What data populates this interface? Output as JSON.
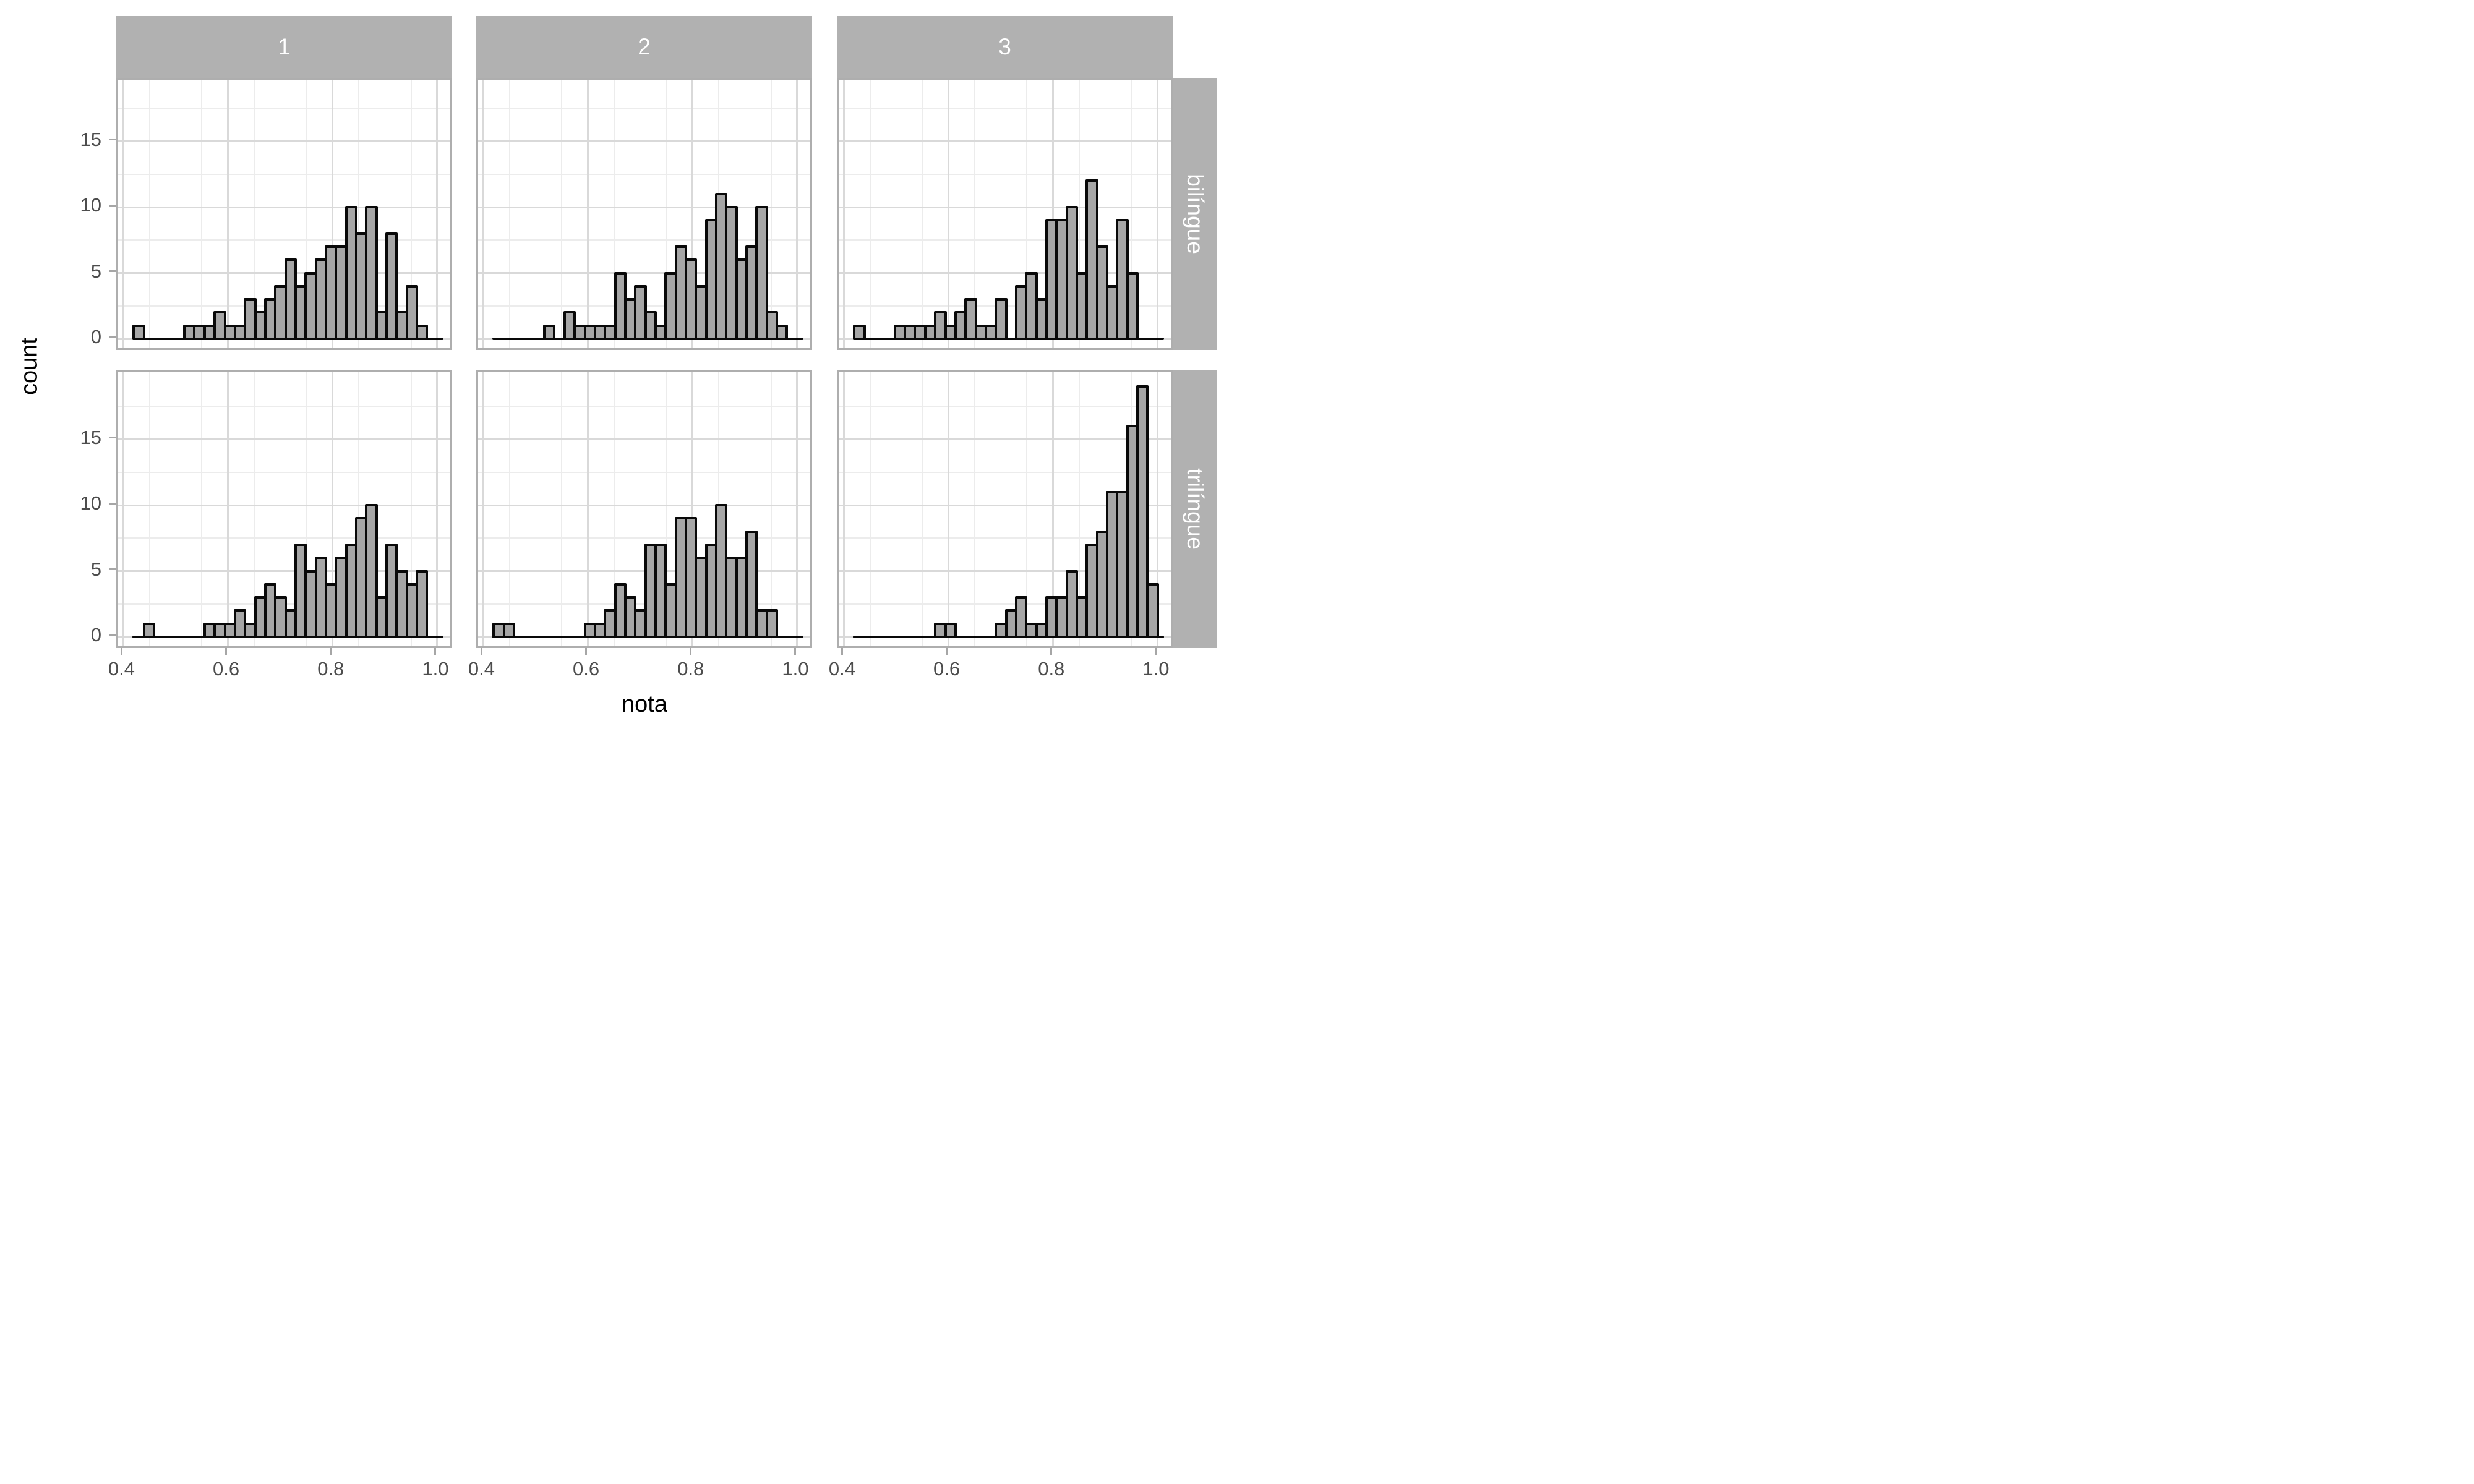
{
  "chart_data": {
    "type": "bar",
    "subtype": "faceted-histogram",
    "title": "",
    "xlabel": "nota",
    "ylabel": "count",
    "legend": "none",
    "grid": "on",
    "x_ticks": [
      0.4,
      0.6,
      0.8,
      1.0
    ],
    "x_tick_labels": [
      "0.4",
      "0.6",
      "0.8",
      "1.0"
    ],
    "y_ticks": [
      0,
      5,
      10,
      15
    ],
    "y_tick_labels": [
      "0",
      "5",
      "10",
      "15"
    ],
    "x_minor_ticks": [
      0.45,
      0.55,
      0.65,
      0.75,
      0.85,
      0.95
    ],
    "y_minor_ticks": [
      2.5,
      7.5,
      12.5,
      17.5
    ],
    "x_range": [
      0.39,
      1.032
    ],
    "y_range": [
      -1,
      19.8
    ],
    "bin_start": 0.42,
    "bin_width": 0.01933,
    "n_bins": 30,
    "facet_col_labels": [
      "1",
      "2",
      "3"
    ],
    "facet_row_labels": [
      "bilíngue",
      "trilíngue"
    ],
    "panels": [
      {
        "row": "bilíngue",
        "col": "1",
        "counts": [
          1,
          0,
          0,
          0,
          0,
          1,
          1,
          1,
          2,
          1,
          1,
          3,
          2,
          3,
          4,
          6,
          4,
          5,
          6,
          7,
          7,
          10,
          8,
          10,
          2,
          8,
          2,
          4,
          1,
          0
        ]
      },
      {
        "row": "bilíngue",
        "col": "2",
        "counts": [
          0,
          0,
          0,
          0,
          0,
          1,
          0,
          2,
          1,
          1,
          1,
          1,
          5,
          3,
          4,
          2,
          1,
          5,
          7,
          6,
          4,
          9,
          11,
          10,
          6,
          7,
          10,
          2,
          1,
          0
        ]
      },
      {
        "row": "bilíngue",
        "col": "3",
        "counts": [
          1,
          0,
          0,
          0,
          1,
          1,
          1,
          1,
          2,
          1,
          2,
          3,
          1,
          1,
          3,
          0,
          4,
          5,
          3,
          9,
          9,
          10,
          5,
          12,
          7,
          4,
          9,
          5,
          0,
          0
        ]
      },
      {
        "row": "trilíngue",
        "col": "1",
        "counts": [
          0,
          1,
          0,
          0,
          0,
          0,
          0,
          1,
          1,
          1,
          2,
          1,
          3,
          4,
          3,
          2,
          7,
          5,
          6,
          4,
          6,
          7,
          9,
          10,
          3,
          7,
          5,
          4,
          5,
          0
        ]
      },
      {
        "row": "trilíngue",
        "col": "2",
        "counts": [
          1,
          1,
          0,
          0,
          0,
          0,
          0,
          0,
          0,
          1,
          1,
          2,
          4,
          3,
          2,
          7,
          7,
          4,
          9,
          9,
          6,
          7,
          10,
          6,
          6,
          8,
          2,
          2,
          0,
          0
        ]
      },
      {
        "row": "trilíngue",
        "col": "3",
        "counts": [
          0,
          0,
          0,
          0,
          0,
          0,
          0,
          0,
          1,
          1,
          0,
          0,
          0,
          0,
          1,
          2,
          3,
          1,
          1,
          3,
          3,
          5,
          3,
          7,
          8,
          11,
          11,
          16,
          19,
          4
        ]
      }
    ],
    "colors": {
      "bar_fill": "#a6a6a6",
      "bar_outline": "#090909",
      "strip_bg": "#b1b1b1",
      "strip_text": "#ffffff",
      "grid_major": "#d9d9d9",
      "grid_minor": "#ececec",
      "panel_border": "#aeaeae",
      "panel_bg": "#ffffff",
      "tick_label": "#4d4d4d",
      "axis_title": "#000000",
      "tick_mark": "#a6a6a6"
    }
  }
}
